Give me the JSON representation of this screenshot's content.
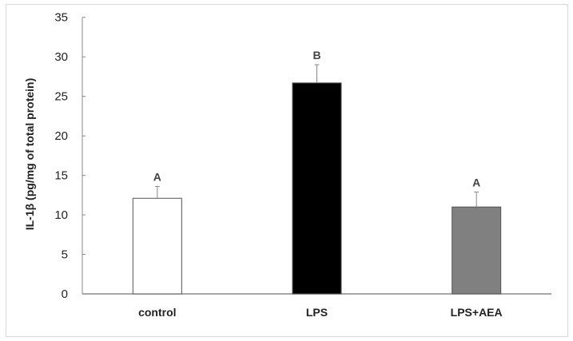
{
  "chart_data": {
    "type": "bar",
    "categories": [
      "control",
      "LPS",
      "LPS+AEA"
    ],
    "values": [
      12.1,
      26.7,
      11.0
    ],
    "error_upper": [
      13.6,
      29.0,
      12.9
    ],
    "significance_letters": [
      "A",
      "B",
      "A"
    ],
    "bar_colors": [
      "#ffffff",
      "#000000",
      "#808080"
    ],
    "xlabel": "",
    "ylabel": "IL-1β (pg/mg of total protein)",
    "ylim": [
      0,
      35
    ],
    "yticks": [
      0,
      5,
      10,
      15,
      20,
      25,
      30,
      35
    ],
    "grid": false
  }
}
